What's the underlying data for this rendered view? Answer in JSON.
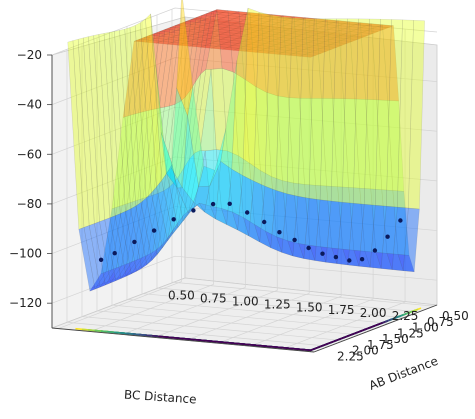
{
  "chart_data": {
    "type": "surface3d",
    "title": "",
    "xlabel": "BC Distance",
    "ylabel": "AB Distance",
    "zlabel": "",
    "xlim": [
      0.45,
      2.5
    ],
    "ylim": [
      0.45,
      2.5
    ],
    "zlim": [
      -130,
      -20
    ],
    "x_ticks": [
      "0.50",
      "0.75",
      "1.00",
      "1.25",
      "1.50",
      "1.75",
      "2.00",
      "2.25"
    ],
    "y_ticks": [
      "0.50",
      "0.75",
      "1.00",
      "1.25",
      "1.50",
      "1.75",
      "2.00",
      "2.25"
    ],
    "z_ticks": [
      "−20",
      "−40",
      "−60",
      "−80",
      "−100",
      "−120"
    ],
    "surface_colormap": "jet",
    "contour_colormap": "viridis",
    "trajectory_color": "#0b1a5c",
    "grid": true,
    "trajectory": [
      {
        "x": 0.74,
        "y": 2.3,
        "z": -103
      },
      {
        "x": 0.8,
        "y": 2.2,
        "z": -101
      },
      {
        "x": 0.86,
        "y": 2.0,
        "z": -98
      },
      {
        "x": 0.92,
        "y": 1.8,
        "z": -95
      },
      {
        "x": 0.98,
        "y": 1.6,
        "z": -92
      },
      {
        "x": 1.04,
        "y": 1.4,
        "z": -90
      },
      {
        "x": 1.1,
        "y": 1.2,
        "z": -89
      },
      {
        "x": 1.16,
        "y": 1.05,
        "z": -90
      },
      {
        "x": 1.25,
        "y": 0.95,
        "z": -94
      },
      {
        "x": 1.35,
        "y": 0.88,
        "z": -98
      },
      {
        "x": 1.45,
        "y": 0.84,
        "z": -102
      },
      {
        "x": 1.55,
        "y": 0.8,
        "z": -105
      },
      {
        "x": 1.65,
        "y": 0.78,
        "z": -108
      },
      {
        "x": 1.75,
        "y": 0.76,
        "z": -110
      },
      {
        "x": 1.85,
        "y": 0.75,
        "z": -111
      },
      {
        "x": 1.95,
        "y": 0.74,
        "z": -112
      },
      {
        "x": 2.05,
        "y": 0.74,
        "z": -111
      },
      {
        "x": 2.15,
        "y": 0.74,
        "z": -107
      },
      {
        "x": 2.25,
        "y": 0.74,
        "z": -101
      },
      {
        "x": 2.35,
        "y": 0.74,
        "z": -94
      }
    ]
  }
}
